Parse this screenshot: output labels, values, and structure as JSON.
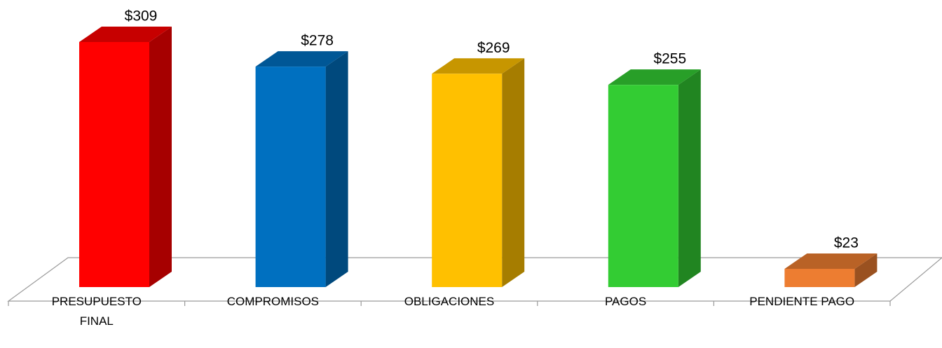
{
  "chart_data": {
    "type": "bar3d",
    "categories": [
      "PRESUPUESTO FINAL",
      "COMPROMISOS",
      "OBLIGACIONES",
      "PAGOS",
      "PENDIENTE PAGO"
    ],
    "values": [
      309,
      278,
      269,
      255,
      23
    ],
    "value_labels": [
      "$309",
      "$278",
      "$269",
      "$255",
      "$23"
    ],
    "colors": [
      "#ff0000",
      "#0070c0",
      "#ffc000",
      "#33cc33",
      "#ed7d31"
    ]
  }
}
